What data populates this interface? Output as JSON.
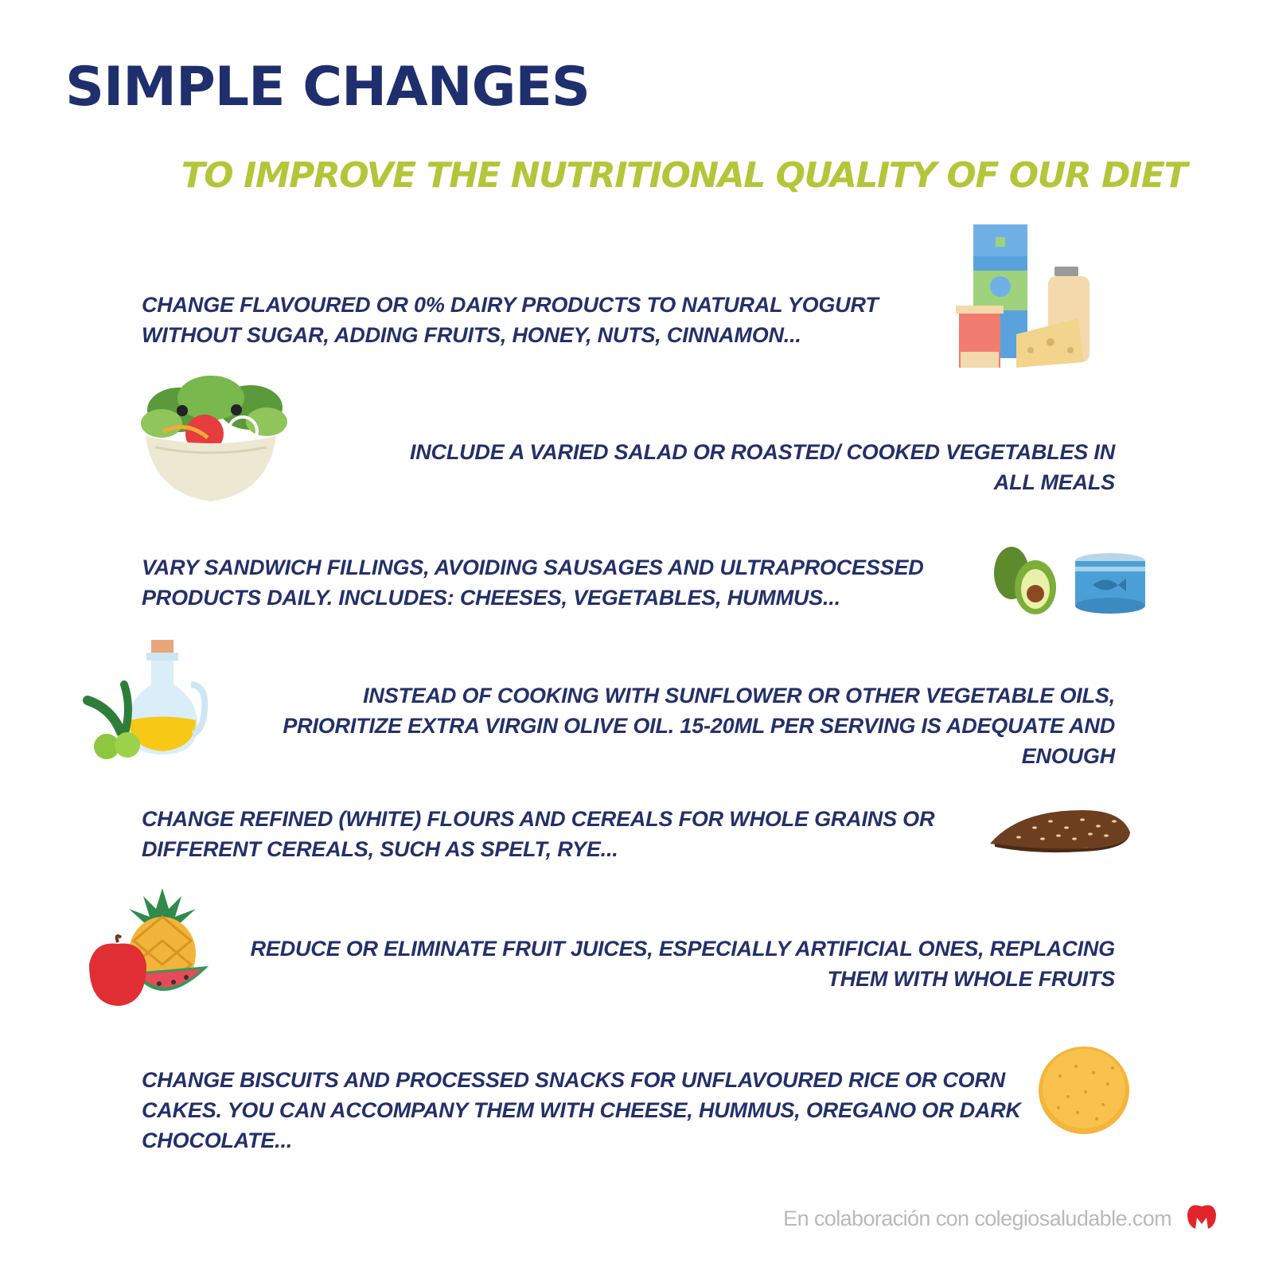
{
  "title": "SIMPLE CHANGES",
  "subtitle": "TO IMPROVE THE NUTRITIONAL QUALITY OF OUR DIET",
  "tips": [
    {
      "text": "CHANGE FLAVOURED OR 0% DAIRY PRODUCTS TO NATURAL YOGURT WITHOUT SUGAR, ADDING FRUITS, HONEY, NUTS, CINNAMON...",
      "icon": "dairy-products-icon"
    },
    {
      "text": "INCLUDE A VARIED SALAD OR ROASTED/ COOKED VEGETABLES IN ALL MEALS",
      "icon": "salad-bowl-icon"
    },
    {
      "text": "VARY SANDWICH FILLINGS, AVOIDING SAUSAGES AND ULTRAPROCESSED PRODUCTS DAILY. INCLUDES: CHEESES, VEGETABLES, HUMMUS...",
      "icon": "avocado-tuna-can-icon"
    },
    {
      "text": "INSTEAD OF COOKING WITH SUNFLOWER OR OTHER VEGETABLE OILS, PRIORITIZE EXTRA VIRGIN OLIVE OIL. 15-20ML PER SERVING IS ADEQUATE AND ENOUGH",
      "icon": "olive-oil-bottle-icon"
    },
    {
      "text": "CHANGE REFINED (WHITE) FLOURS AND CEREALS FOR WHOLE GRAINS OR DIFFERENT CEREALS, SUCH AS SPELT, RYE...",
      "icon": "whole-grain-bread-icon"
    },
    {
      "text": "REDUCE OR ELIMINATE FRUIT JUICES, ESPECIALLY ARTIFICIAL ONES, REPLACING THEM WITH WHOLE FRUITS",
      "icon": "fruits-icon"
    },
    {
      "text": "CHANGE BISCUITS AND PROCESSED SNACKS FOR UNFLAVOURED RICE OR CORN CAKES. YOU CAN ACCOMPANY THEM WITH CHEESE, HUMMUS, OREGANO OR DARK CHOCOLATE...",
      "icon": "rice-cake-icon"
    }
  ],
  "footer": "En colaboración con colegiosaludable.com",
  "colors": {
    "title": "#1f2f6e",
    "subtitle": "#b3c63a",
    "text": "#24306a",
    "footer": "#b9b9b9"
  }
}
